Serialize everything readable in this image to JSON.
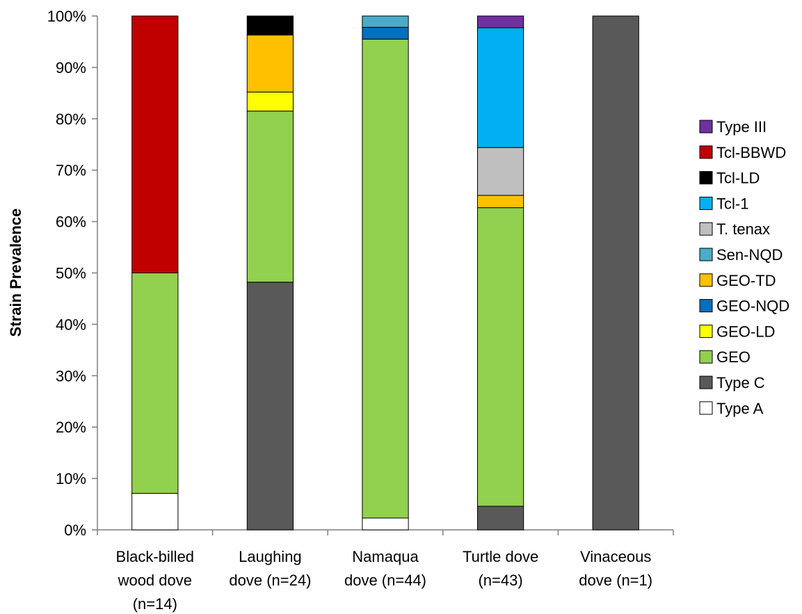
{
  "chart_data": {
    "type": "bar",
    "stacked": true,
    "ylabel": "Strain Prevalence",
    "yticks": [
      "0%",
      "10%",
      "20%",
      "30%",
      "40%",
      "50%",
      "60%",
      "70%",
      "80%",
      "90%",
      "100%"
    ],
    "ylim": [
      0,
      100
    ],
    "categories": [
      [
        "Black-billed",
        "wood dove",
        "(n=14)"
      ],
      [
        "Laughing",
        "dove (n=24)"
      ],
      [
        "Namaqua",
        "dove (n=44)"
      ],
      [
        "Turtle dove",
        "(n=43)"
      ],
      [
        "Vinaceous",
        "dove (n=1)"
      ]
    ],
    "series": [
      {
        "name": "Type A",
        "color": "#ffffff",
        "values": [
          7.1,
          0,
          2.3,
          0,
          0
        ]
      },
      {
        "name": "Type C",
        "color": "#595959",
        "values": [
          0,
          48.2,
          0,
          4.6,
          100
        ]
      },
      {
        "name": "GEO",
        "color": "#92d050",
        "values": [
          42.9,
          33.3,
          93.2,
          58.1,
          0
        ]
      },
      {
        "name": "GEO-LD",
        "color": "#ffff00",
        "values": [
          0,
          3.7,
          0,
          0,
          0
        ]
      },
      {
        "name": "GEO-NQD",
        "color": "#0070c0",
        "values": [
          0,
          0,
          2.3,
          0,
          0
        ]
      },
      {
        "name": "GEO-TD",
        "color": "#ffc000",
        "values": [
          0,
          11.1,
          0,
          2.4,
          0
        ]
      },
      {
        "name": "Sen-NQD",
        "color": "#4bacc6",
        "values": [
          0,
          0,
          2.2,
          0,
          0
        ]
      },
      {
        "name": "T. tenax",
        "color": "#bfbfbf",
        "values": [
          0,
          0,
          0,
          9.3,
          0
        ]
      },
      {
        "name": "Tcl-1",
        "color": "#00b0f0",
        "values": [
          0,
          0,
          0,
          23.3,
          0
        ]
      },
      {
        "name": "Tcl-LD",
        "color": "#000000",
        "values": [
          0,
          3.7,
          0,
          0,
          0
        ]
      },
      {
        "name": "Tcl-BBWD",
        "color": "#c00000",
        "values": [
          50,
          0,
          0,
          0,
          0
        ]
      },
      {
        "name": "Type III",
        "color": "#7030a0",
        "values": [
          0,
          0,
          0,
          2.3,
          0
        ]
      }
    ],
    "legend_order": [
      "Type III",
      "Tcl-BBWD",
      "Tcl-LD",
      "Tcl-1",
      "T. tenax",
      "Sen-NQD",
      "GEO-TD",
      "GEO-NQD",
      "GEO-LD",
      "GEO",
      "Type C",
      "Type A"
    ],
    "legend_position": "right",
    "grid": false
  }
}
